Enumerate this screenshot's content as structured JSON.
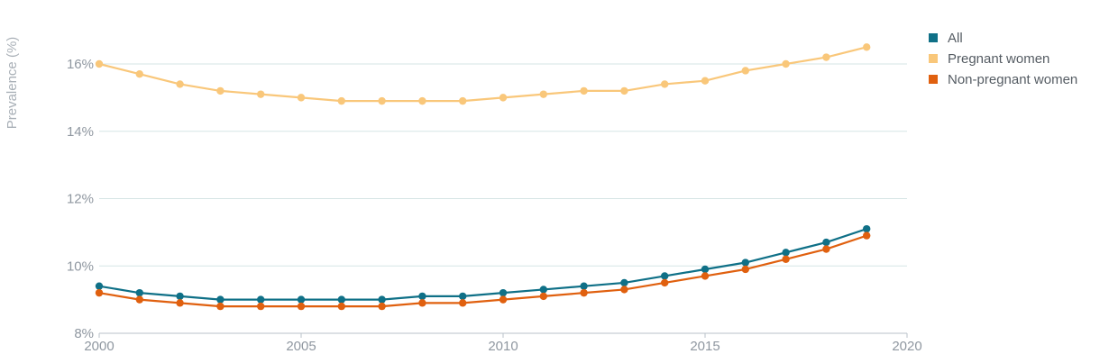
{
  "chart_data": {
    "type": "line",
    "ylabel": "Prevalence (%)",
    "xlabel": "",
    "xlim": [
      2000,
      2020
    ],
    "ylim": [
      8,
      17
    ],
    "x_ticks": [
      2000,
      2005,
      2010,
      2015,
      2020
    ],
    "y_ticks": [
      8,
      10,
      12,
      14,
      16
    ],
    "y_tick_format": "%",
    "grid": "horizontal",
    "legend_position": "top-right",
    "x": [
      2000,
      2001,
      2002,
      2003,
      2004,
      2005,
      2006,
      2007,
      2008,
      2009,
      2010,
      2011,
      2012,
      2013,
      2014,
      2015,
      2016,
      2017,
      2018,
      2019
    ],
    "series": [
      {
        "name": "All",
        "color": "#0f7087",
        "values": [
          9.4,
          9.2,
          9.1,
          9.0,
          9.0,
          9.0,
          9.0,
          9.0,
          9.1,
          9.1,
          9.2,
          9.3,
          9.4,
          9.5,
          9.7,
          9.9,
          10.1,
          10.4,
          10.7,
          11.1
        ]
      },
      {
        "name": "Pregnant women",
        "color": "#f9c77a",
        "values": [
          16.0,
          15.7,
          15.4,
          15.2,
          15.1,
          15.0,
          14.9,
          14.9,
          14.9,
          14.9,
          15.0,
          15.1,
          15.2,
          15.2,
          15.4,
          15.5,
          15.8,
          16.0,
          16.2,
          16.5
        ]
      },
      {
        "name": "Non-pregnant women",
        "color": "#e0600f",
        "values": [
          9.2,
          9.0,
          8.9,
          8.8,
          8.8,
          8.8,
          8.8,
          8.8,
          8.9,
          8.9,
          9.0,
          9.1,
          9.2,
          9.3,
          9.5,
          9.7,
          9.9,
          10.2,
          10.5,
          10.9
        ]
      }
    ]
  }
}
